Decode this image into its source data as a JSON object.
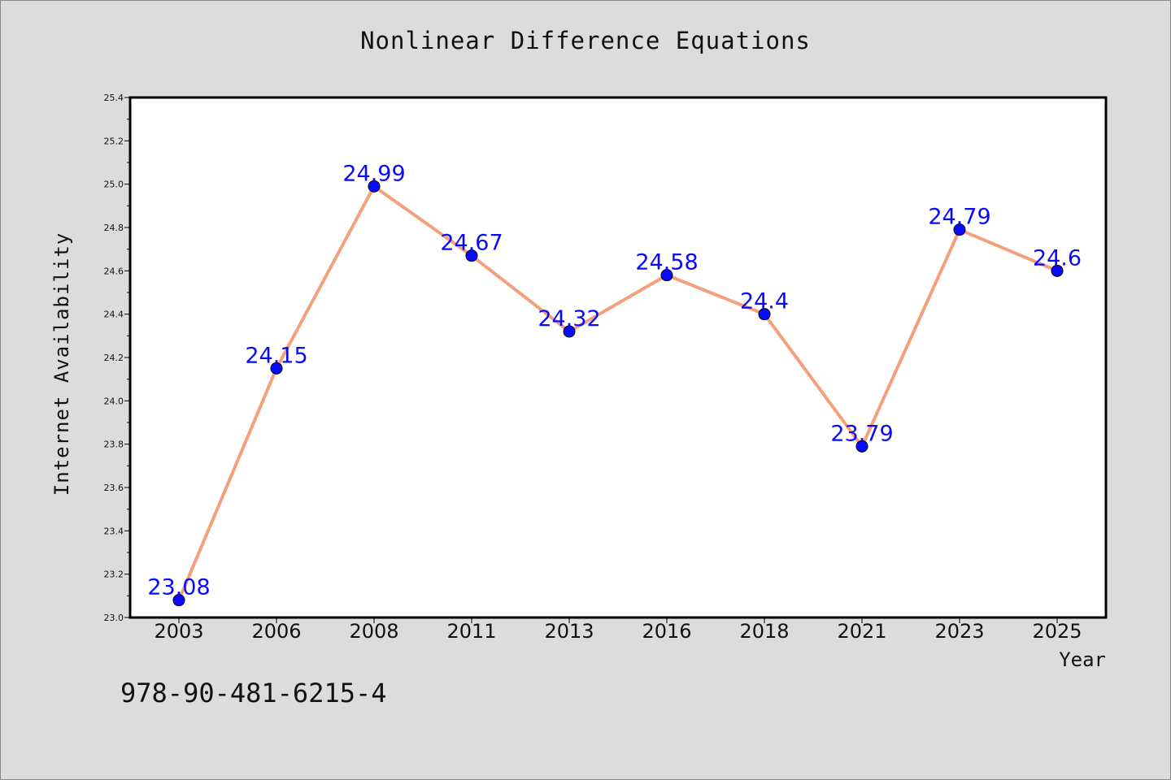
{
  "chart_data": {
    "type": "line",
    "title": "Nonlinear Difference Equations",
    "xlabel": "Year",
    "ylabel": "Internet Availability",
    "categories": [
      "2003",
      "2006",
      "2008",
      "2011",
      "2013",
      "2016",
      "2018",
      "2021",
      "2023",
      "2025"
    ],
    "series": [
      {
        "values": [
          23.08,
          24.15,
          24.99,
          24.67,
          24.32,
          24.58,
          24.4,
          23.79,
          24.79,
          24.6
        ],
        "data_labels": [
          "23.08",
          "24.15",
          "24.99",
          "24.67",
          "24.32",
          "24.58",
          "24.4",
          "23.79",
          "24.79",
          "24.6"
        ],
        "line_color": "#f4a07c",
        "marker_color": "#0a0aff",
        "label_color": "#0a0aff"
      }
    ],
    "ylim": [
      23.0,
      25.4
    ],
    "yticks": [
      "23.0",
      "23.2",
      "23.4",
      "23.6",
      "23.8",
      "24.0",
      "24.2",
      "24.4",
      "24.6",
      "24.8",
      "25.0",
      "25.2",
      "25.4"
    ],
    "grid": false,
    "legend": "none"
  },
  "footer": {
    "code": "978-90-481-6215-4"
  },
  "colors": {
    "background": "#dcdcdc",
    "plot_area": "#ffffff",
    "axis": "#000000"
  }
}
